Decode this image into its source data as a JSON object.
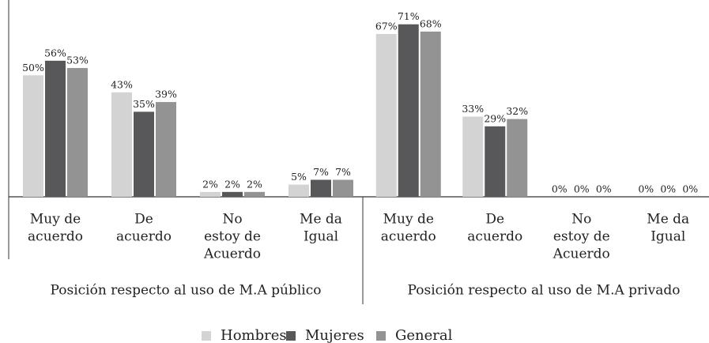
{
  "chart_data": {
    "type": "bar",
    "groups": [
      {
        "name": "Posición respecto al uso de M.A público",
        "categories": [
          [
            "Muy de",
            "acuerdo"
          ],
          [
            "De",
            "acuerdo"
          ],
          [
            "No",
            "estoy de",
            "Acuerdo"
          ],
          [
            "Me da",
            "Igual"
          ]
        ]
      },
      {
        "name": "Posición respecto al uso de M.A privado",
        "categories": [
          [
            "Muy de",
            "acuerdo"
          ],
          [
            "De",
            "acuerdo"
          ],
          [
            "No",
            "estoy de",
            "Acuerdo"
          ],
          [
            "Me da",
            "Igual"
          ]
        ]
      }
    ],
    "series": [
      {
        "name": "Hombres",
        "color": "#d3d3d3",
        "values": [
          50,
          43,
          2,
          5,
          67,
          33,
          0,
          0
        ],
        "value_labels": [
          "50%",
          "43%",
          "2%",
          "5%",
          "67%",
          "33%",
          "0%",
          "0%"
        ]
      },
      {
        "name": "Mujeres",
        "color": "#58585a",
        "values": [
          56,
          35,
          2,
          7,
          71,
          29,
          0,
          0
        ],
        "value_labels": [
          "56%",
          "35%",
          "2%",
          "7%",
          "71%",
          "29%",
          "0%",
          "0%"
        ]
      },
      {
        "name": "General",
        "color": "#939393",
        "values": [
          53,
          39,
          2,
          7,
          68,
          32,
          0,
          0
        ],
        "value_labels": [
          "53%",
          "39%",
          "2%",
          "7%",
          "68%",
          "32%",
          "0%",
          "0%"
        ]
      }
    ],
    "ylim": [
      0,
      81
    ],
    "legend": "bottom"
  }
}
